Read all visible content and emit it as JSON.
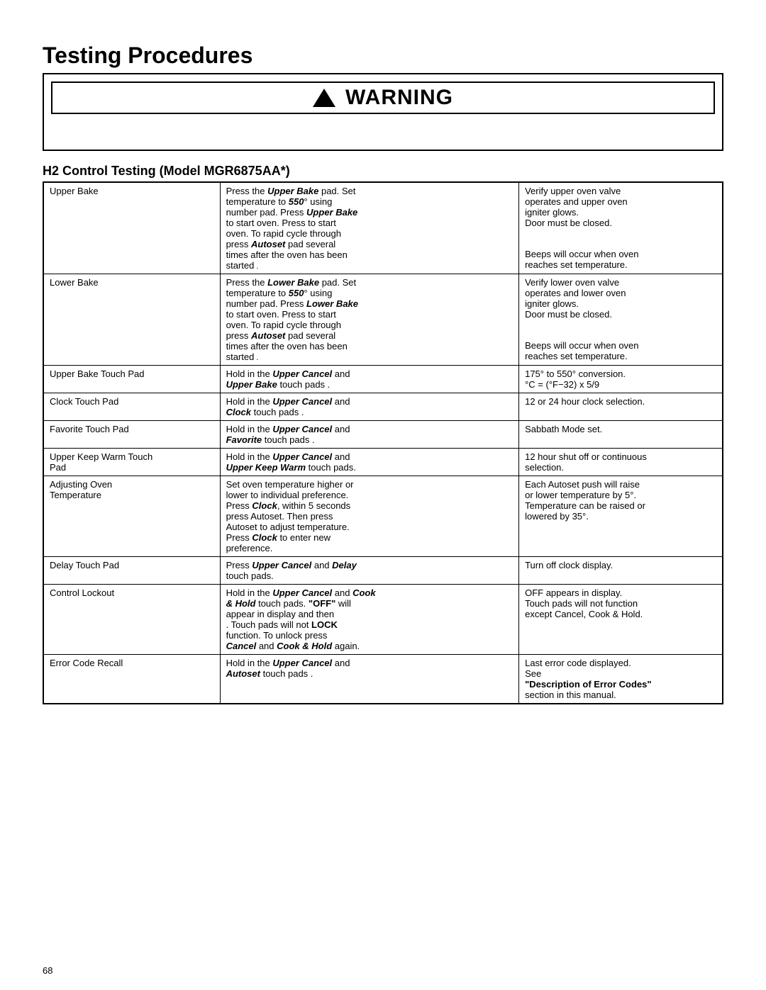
{
  "page_title": "Testing Procedures",
  "warning_label": "WARNING",
  "section_title": "H2 Control Testing (Model MGR6875AA*)",
  "page_number": "68",
  "colors": {
    "text": "#000000",
    "background": "#ffffff",
    "border": "#000000"
  },
  "rows": [
    {
      "c1_lines": [
        "Upper Bake"
      ],
      "c2_lines": [
        {
          "pre": "Press the ",
          "bi": "Upper Bake",
          "post": " pad. Set "
        },
        {
          "pre": "temperature to ",
          "bi": "550",
          "post": "° using"
        },
        {
          "pre": "number pad. Press ",
          "bi": "Upper Bake",
          "post": ""
        },
        {
          "pre": "to start oven. Press to start ",
          "post": "",
          "bi": ""
        },
        {
          "pre": "oven. To rapid cycle through ",
          "post": "",
          "bi": ""
        },
        {
          "pre": "press ",
          "bi": "Autoset",
          "post": " pad several "
        },
        {
          "pre": "times after the oven has been ",
          "post": "",
          "bi": ""
        },
        {
          "pre": "started",
          "post": "",
          "bi": ""
        }
      ],
      "c3_lines": [
        "Verify upper oven valve",
        "operates and upper oven",
        "igniter glows.",
        "Door must be closed.",
        "",
        "Beeps will occur when oven",
        "reaches set temperature."
      ],
      "c2_tail_dot": true
    },
    {
      "c1_lines": [
        "Lower Bake"
      ],
      "c2_lines": [
        {
          "pre": "Press the ",
          "bi": "Lower Bake",
          "post": " pad. Set "
        },
        {
          "pre": "temperature to ",
          "bi": "550",
          "post": "° using"
        },
        {
          "pre": "number pad. Press ",
          "bi": "Lower Bake",
          "post": ""
        },
        {
          "pre": "to start oven. Press to start ",
          "post": "",
          "bi": ""
        },
        {
          "pre": "oven. To rapid cycle through ",
          "post": "",
          "bi": ""
        },
        {
          "pre": "press ",
          "bi": "Autoset",
          "post": " pad several "
        },
        {
          "pre": "times after the oven has been ",
          "post": "",
          "bi": ""
        },
        {
          "pre": "started",
          "post": "",
          "bi": ""
        }
      ],
      "c3_lines": [
        "Verify lower oven valve",
        "operates and lower oven",
        "igniter glows.",
        "Door must be closed.",
        "",
        "Beeps will occur when oven",
        "reaches set temperature."
      ],
      "c2_tail_dot": true
    },
    {
      "c1_lines": [
        "Upper Bake Touch Pad"
      ],
      "c2_lines": [
        {
          "pre": "Hold in the ",
          "bi": "Upper Cancel",
          "post": " and "
        },
        {
          "pre": "",
          "bi": "Upper Bake",
          "post": " touch pads ."
        }
      ],
      "c3_lines": [
        "175° to 550° conversion.",
        "°C = (°F−32) x 5/9"
      ]
    },
    {
      "c1_lines": [
        "Clock Touch Pad"
      ],
      "c2_lines": [
        {
          "pre": "Hold in the ",
          "bi": "Upper Cancel",
          "post": " and "
        },
        {
          "pre": "",
          "bi": "Clock",
          "post": " touch pads ."
        }
      ],
      "c3_lines": [
        "12 or 24 hour clock selection."
      ]
    },
    {
      "c1_lines": [
        "Favorite Touch Pad"
      ],
      "c2_lines": [
        {
          "pre": "Hold in the ",
          "bi": "Upper Cancel",
          "post": " and "
        },
        {
          "pre": "",
          "bi": "Favorite",
          "post": " touch pads ."
        }
      ],
      "c3_lines": [
        "Sabbath Mode set."
      ]
    },
    {
      "c1_lines": [
        "Upper Keep Warm Touch",
        "Pad"
      ],
      "c2_lines": [
        {
          "pre": "Hold in the ",
          "bi": "Upper Cancel",
          "post": " and "
        },
        {
          "pre": "",
          "bi": "Upper Keep Warm",
          "post": " touch pads."
        }
      ],
      "c3_lines": [
        "12 hour shut off or continuous",
        "selection."
      ]
    },
    {
      "c1_lines": [
        "Adjusting Oven",
        "Temperature"
      ],
      "c2_lines": [
        {
          "pre": "Set oven temperature higher or ",
          "bi": "",
          "post": ""
        },
        {
          "pre": "lower to individual preference.",
          "bi": "",
          "post": ""
        },
        {
          "pre": "Press ",
          "bi": "Clock",
          "post": ", within 5 seconds "
        },
        {
          "pre": "press Autoset. Then press",
          "bi": "",
          "post": ""
        },
        {
          "pre": "Autoset to adjust temperature.",
          "bi": "",
          "post": ""
        },
        {
          "pre": "Press ",
          "bi": "Clock",
          "post": " to enter new "
        },
        {
          "pre": "preference.",
          "bi": "",
          "post": ""
        }
      ],
      "c3_lines": [
        "Each Autoset push will raise",
        "or lower temperature by 5°.",
        "Temperature can be raised or",
        "lowered by 35°."
      ]
    },
    {
      "c1_lines": [
        "Delay Touch Pad"
      ],
      "c2_lines": [
        {
          "pre": "Press ",
          "bi": "Upper Cancel",
          "post": " and ",
          "bi2": "Delay",
          "post2": ""
        },
        {
          "pre": "touch pads.",
          "bi": "",
          "post": ""
        }
      ],
      "c3_lines": [
        "Turn off clock display."
      ]
    },
    {
      "c1_lines": [
        "Control Lockout"
      ],
      "c2_lines": [
        {
          "pre": "Hold in the ",
          "bi": "Upper Cancel",
          "post": " and ",
          "bi2": "Cook",
          "post2": ""
        },
        {
          "pre": "",
          "bi": "& Hold",
          "post": " touch pads. ",
          "b_plain": "\"OFF\"",
          "post3": " will "
        },
        {
          "pre": "appear in display and then ",
          "bi": "",
          "post": ""
        },
        {
          "pre": "",
          "b_plain": "LOCK",
          "post": ". Touch pads will not "
        },
        {
          "pre": "function. To unlock press",
          "bi": "",
          "post": ""
        },
        {
          "pre": "",
          "bi": "Cancel",
          "post": " and ",
          "bi2": "Cook & Hold",
          "post2": " again."
        }
      ],
      "c3_lines": [
        "OFF appears in display.",
        "Touch pads will not function",
        "except Cancel, Cook & Hold."
      ]
    },
    {
      "c1_lines": [
        "Error Code Recall"
      ],
      "c2_lines": [
        {
          "pre": "Hold in the ",
          "bi": "Upper Cancel",
          "post": " and "
        },
        {
          "pre": "",
          "bi": "Autoset",
          "post": " touch pads ."
        }
      ],
      "c3_lines": [
        "Last error code displayed.",
        "See ",
        "\"Description of Error Codes\"",
        "section in this manual."
      ],
      "c3_bold_line": 2
    }
  ]
}
